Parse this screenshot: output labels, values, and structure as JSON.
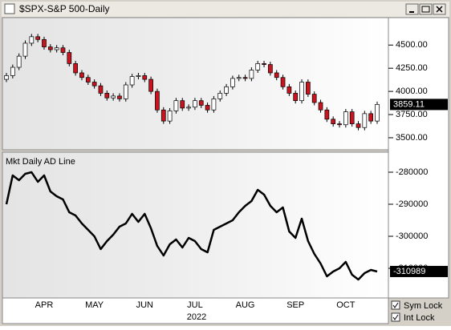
{
  "window_title": "$SPX-S&P 500-Daily",
  "controls": [
    "Sym Lock",
    "Int Lock"
  ],
  "year_label": "2022",
  "chart_data": [
    {
      "type": "candlestick",
      "categories": [
        null,
        null,
        null,
        null,
        null,
        null,
        "APR",
        null,
        null,
        null,
        null,
        null,
        null,
        null,
        "MAY",
        null,
        null,
        null,
        null,
        null,
        null,
        null,
        "JUN",
        null,
        null,
        null,
        null,
        null,
        null,
        null,
        "JUL",
        null,
        null,
        null,
        null,
        null,
        null,
        null,
        "AUG",
        null,
        null,
        null,
        null,
        null,
        null,
        null,
        "SEP",
        null,
        null,
        null,
        null,
        null,
        null,
        null,
        "OCT",
        null,
        null,
        null,
        null,
        null
      ],
      "open": [
        4130,
        4170,
        4260,
        4380,
        4520,
        4590,
        4560,
        4480,
        4450,
        4470,
        4420,
        4300,
        4200,
        4150,
        4100,
        4060,
        3980,
        3930,
        3950,
        3920,
        4070,
        4160,
        4170,
        4130,
        4000,
        3800,
        3680,
        3790,
        3900,
        3820,
        3830,
        3900,
        3850,
        3800,
        3920,
        3980,
        4050,
        4140,
        4150,
        4140,
        4230,
        4300,
        4290,
        4200,
        4150,
        4050,
        3980,
        3900,
        4100,
        3970,
        3880,
        3800,
        3700,
        3650,
        3640,
        3780,
        3650,
        3610,
        3760,
        3680
      ],
      "high": [
        4200,
        4290,
        4410,
        4550,
        4620,
        4620,
        4590,
        4510,
        4500,
        4500,
        4450,
        4330,
        4230,
        4180,
        4130,
        4090,
        4010,
        3980,
        3980,
        4100,
        4190,
        4200,
        4200,
        4160,
        4030,
        3830,
        3820,
        3930,
        3930,
        3860,
        3930,
        3930,
        3880,
        3950,
        4010,
        4080,
        4170,
        4180,
        4180,
        4260,
        4330,
        4330,
        4320,
        4230,
        4180,
        4080,
        4010,
        4130,
        4130,
        4000,
        3910,
        3830,
        3730,
        3680,
        3810,
        3810,
        3680,
        3790,
        3790,
        3890
      ],
      "low": [
        4100,
        4140,
        4230,
        4350,
        4490,
        4530,
        4450,
        4420,
        4420,
        4390,
        4270,
        4170,
        4120,
        4070,
        4030,
        3950,
        3900,
        3900,
        3890,
        3890,
        4040,
        4130,
        4100,
        3970,
        3770,
        3650,
        3650,
        3760,
        3790,
        3790,
        3800,
        3820,
        3770,
        3770,
        3890,
        3950,
        4020,
        4110,
        4110,
        4110,
        4200,
        4260,
        4170,
        4120,
        4020,
        3950,
        3870,
        3870,
        3940,
        3850,
        3770,
        3670,
        3620,
        3610,
        3610,
        3620,
        3580,
        3580,
        3650,
        3650
      ],
      "close": [
        4170,
        4260,
        4380,
        4520,
        4590,
        4560,
        4480,
        4450,
        4470,
        4420,
        4300,
        4200,
        4150,
        4100,
        4060,
        3980,
        3930,
        3950,
        3920,
        4070,
        4160,
        4170,
        4130,
        4000,
        3800,
        3680,
        3790,
        3900,
        3820,
        3830,
        3900,
        3850,
        3800,
        3920,
        3980,
        4050,
        4140,
        4150,
        4140,
        4230,
        4300,
        4290,
        4200,
        4150,
        4050,
        3980,
        3900,
        4100,
        3970,
        3880,
        3800,
        3700,
        3650,
        3640,
        3780,
        3650,
        3610,
        3760,
        3680,
        3859.11
      ],
      "up_color": "#ffffff",
      "down_color": "#c8141e",
      "ylim": [
        3370,
        4796
      ],
      "yticks": [
        {
          "value": 3500,
          "label": "3500.00"
        },
        {
          "value": 3750,
          "label": "3750.00"
        },
        {
          "value": 4000,
          "label": "4000.00"
        },
        {
          "value": 4250,
          "label": "4250.00"
        },
        {
          "value": 4500,
          "label": "4500.00"
        }
      ]
    },
    {
      "type": "line",
      "title": "Mkt Daily AD Line",
      "color": "#000000",
      "values": [
        -290000,
        -281000,
        -282500,
        -280500,
        -280000,
        -283000,
        -281000,
        -286000,
        -287500,
        -288500,
        -292500,
        -293500,
        -296000,
        -298000,
        -300000,
        -304000,
        -301500,
        -299500,
        -297000,
        -296000,
        -293000,
        -295500,
        -293000,
        -297500,
        -303000,
        -306000,
        -302500,
        -301000,
        -303500,
        -300500,
        -301500,
        -304000,
        -305000,
        -298000,
        -297000,
        -296000,
        -295000,
        -292500,
        -290500,
        -289000,
        -285500,
        -287000,
        -290500,
        -292500,
        -291000,
        -298500,
        -300500,
        -294500,
        -301500,
        -305500,
        -308500,
        -312500,
        -311000,
        -310000,
        -308000,
        -312000,
        -313500,
        -311500,
        -310500,
        -310989
      ],
      "ylim": [
        -319250,
        -273750
      ],
      "yticks": [
        -280000,
        -290000,
        -300000,
        -310000
      ]
    }
  ]
}
